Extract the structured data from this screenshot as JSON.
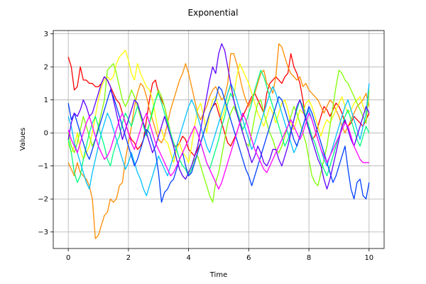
{
  "chart_data": {
    "type": "line",
    "title": "Exponential",
    "xlabel": "Time",
    "ylabel": "Values",
    "xlim": [
      -0.5,
      10.5
    ],
    "ylim": [
      -3.5,
      3.1
    ],
    "xticks": [
      0,
      2,
      4,
      6,
      8,
      10
    ],
    "yticks": [
      -3,
      -2,
      -1,
      0,
      1,
      2,
      3
    ],
    "xtick_labels": [
      "0",
      "2",
      "4",
      "6",
      "8",
      "10"
    ],
    "ytick_labels": [
      "−3",
      "−2",
      "−1",
      "0",
      "1",
      "2",
      "3"
    ],
    "grid": true,
    "x_step": 0.1,
    "series": [
      {
        "color": "#ff0000",
        "values": [
          2.3,
          2.0,
          1.3,
          1.4,
          2.0,
          1.6,
          1.6,
          1.5,
          1.5,
          1.4,
          1.4,
          1.5,
          1.7,
          1.6,
          1.4,
          1.2,
          1.0,
          0.9,
          0.6,
          0.3,
          0.0,
          -0.2,
          -0.3,
          -0.5,
          -0.4,
          -0.2,
          0.4,
          1.0,
          1.5,
          1.6,
          1.2,
          1.0,
          0.8,
          0.4,
          0.0,
          -0.4,
          -0.4,
          -0.3,
          -0.1,
          -0.2,
          -0.5,
          -0.6,
          -0.7,
          -0.5,
          -0.3,
          0.0,
          0.3,
          0.6,
          0.8,
          0.9,
          0.6,
          0.3,
          0.0,
          -0.3,
          -0.4,
          -0.2,
          0.0,
          0.3,
          0.5,
          0.7,
          0.9,
          1.1,
          1.2,
          1.0,
          0.8,
          0.6,
          1.2,
          1.5,
          1.6,
          1.7,
          1.6,
          1.5,
          1.7,
          1.8,
          2.4,
          2.0,
          1.8,
          1.5,
          1.0,
          0.4,
          0.1,
          -0.2,
          -0.1,
          0.2,
          0.5,
          0.8,
          0.7,
          0.5,
          0.7,
          0.9,
          0.8,
          0.6,
          0.3,
          0.2,
          0.3,
          0.5,
          0.4,
          0.3,
          0.2,
          0.4,
          0.6
        ]
      },
      {
        "color": "#ff8c00",
        "values": [
          -0.9,
          -1.1,
          -1.3,
          -0.9,
          -1.2,
          -1.3,
          -1.4,
          -1.6,
          -2.0,
          -3.2,
          -3.1,
          -2.8,
          -2.5,
          -2.4,
          -2.0,
          -2.1,
          -2.0,
          -1.6,
          -1.5,
          -0.8,
          -0.3,
          0.2,
          0.8,
          1.2,
          1.5,
          1.4,
          1.1,
          0.7,
          0.4,
          0.1,
          -0.2,
          -0.3,
          -0.1,
          0.3,
          0.7,
          1.0,
          1.3,
          1.6,
          1.8,
          2.1,
          1.8,
          1.4,
          1.0,
          0.6,
          0.4,
          0.6,
          0.8,
          1.1,
          1.3,
          1.4,
          1.2,
          1.0,
          1.1,
          1.5,
          2.4,
          2.4,
          2.1,
          1.7,
          1.3,
          1.0,
          0.8,
          1.0,
          1.2,
          1.5,
          1.8,
          1.9,
          1.5,
          1.4,
          1.2,
          1.7,
          2.7,
          2.6,
          2.3,
          2.0,
          1.8,
          1.7,
          1.6,
          1.7,
          1.4,
          1.5,
          1.3,
          1.2,
          1.1,
          1.0,
          0.8,
          0.6,
          0.8,
          1.0,
          0.9,
          0.7,
          0.5,
          0.2,
          0.0,
          0.2,
          0.4,
          0.6,
          0.8,
          0.9,
          1.0,
          1.2,
          0.8
        ]
      },
      {
        "color": "#ffff00",
        "values": [
          -0.3,
          -0.6,
          -0.4,
          0.0,
          -0.5,
          -0.8,
          -0.6,
          -0.4,
          0.0,
          0.5,
          1.0,
          1.4,
          1.6,
          1.7,
          1.6,
          1.7,
          2.1,
          2.3,
          2.4,
          2.5,
          2.2,
          1.8,
          1.6,
          2.1,
          1.8,
          1.6,
          1.4,
          1.3,
          1.0,
          0.5,
          0.0,
          0.1,
          -0.2,
          -0.3,
          -0.6,
          -0.9,
          -0.5,
          -0.3,
          -0.6,
          -0.7,
          -0.9,
          -0.4,
          0.2,
          0.7,
          0.9,
          0.5,
          0.0,
          0.6,
          1.0,
          1.1,
          0.8,
          0.4,
          0.7,
          1.2,
          1.4,
          1.1,
          1.7,
          2.1,
          1.9,
          1.7,
          1.5,
          1.2,
          0.9,
          0.6,
          0.4,
          0.2,
          0.5,
          0.8,
          0.6,
          0.3,
          0.6,
          0.9,
          1.0,
          0.7,
          0.3,
          0.1,
          0.4,
          0.7,
          0.6,
          0.9,
          1.0,
          0.8,
          0.5,
          0.2,
          -0.1,
          0.2,
          0.4,
          0.3,
          0.5,
          0.7,
          0.9,
          1.1,
          0.8,
          0.6,
          0.7,
          0.9,
          1.0,
          1.1,
          0.8,
          0.6,
          1.3
        ]
      },
      {
        "color": "#80ff00",
        "values": [
          0.0,
          -0.4,
          -0.6,
          -0.3,
          0.1,
          0.5,
          0.2,
          -0.1,
          -0.4,
          -0.2,
          0.2,
          0.6,
          1.0,
          1.9,
          2.0,
          2.1,
          1.8,
          1.4,
          1.0,
          0.8,
          1.0,
          1.3,
          1.1,
          0.8,
          0.5,
          0.2,
          0.0,
          0.3,
          0.6,
          1.0,
          1.3,
          1.1,
          0.8,
          0.4,
          0.0,
          -0.4,
          -0.8,
          -1.1,
          -1.3,
          -1.4,
          -1.2,
          -1.0,
          -0.8,
          -0.7,
          -1.0,
          -1.3,
          -1.6,
          -1.9,
          -2.1,
          -1.5,
          -1.2,
          -0.7,
          -0.2,
          0.3,
          0.6,
          0.8,
          0.6,
          0.4,
          0.0,
          -0.3,
          -0.4,
          0.0,
          0.5,
          0.9,
          1.0,
          0.6,
          0.3,
          0.0,
          -0.2,
          -0.5,
          -0.6,
          -0.4,
          -0.1,
          0.2,
          0.5,
          0.8,
          0.6,
          0.3,
          0.0,
          -0.3,
          -0.8,
          -1.3,
          -1.5,
          -1.6,
          -1.2,
          -0.8,
          -0.4,
          0.2,
          0.8,
          1.4,
          1.9,
          1.8,
          1.6,
          1.5,
          1.3,
          1.1,
          0.9,
          0.7,
          0.5,
          0.3,
          1.3
        ]
      },
      {
        "color": "#00ff80",
        "values": [
          -0.2,
          -0.6,
          -1.2,
          -1.5,
          -1.3,
          -0.8,
          -0.4,
          0.0,
          0.3,
          0.5,
          0.2,
          -0.1,
          -0.4,
          -0.8,
          -1.0,
          -0.6,
          -0.3,
          -0.1,
          0.3,
          0.6,
          0.4,
          0.2,
          0.5,
          0.8,
          0.6,
          0.2,
          -0.1,
          0.3,
          0.7,
          1.0,
          1.2,
          0.9,
          0.6,
          0.3,
          0.0,
          -0.3,
          -0.5,
          -0.8,
          -1.0,
          -1.1,
          -1.3,
          -1.1,
          -0.9,
          -0.6,
          -0.3,
          -0.6,
          -0.9,
          -1.1,
          -0.8,
          -0.5,
          -0.2,
          0.2,
          0.5,
          0.9,
          1.2,
          1.0,
          0.7,
          0.4,
          0.1,
          0.3,
          0.6,
          0.9,
          1.3,
          1.6,
          1.9,
          1.7,
          1.4,
          1.1,
          0.8,
          0.5,
          0.2,
          -0.1,
          -0.4,
          -0.2,
          0.1,
          0.4,
          0.7,
          1.0,
          0.8,
          0.5,
          0.2,
          -0.1,
          -0.3,
          -0.6,
          -0.9,
          -1.1,
          -1.3,
          -1.0,
          -0.7,
          -0.4,
          -0.1,
          0.2,
          0.5,
          0.7,
          0.4,
          0.1,
          -0.2,
          -0.4,
          -0.1,
          0.2,
          0.0
        ]
      },
      {
        "color": "#00c0ff",
        "values": [
          0.5,
          0.2,
          -0.3,
          -0.6,
          -0.9,
          -1.2,
          -1.5,
          -1.7,
          -1.2,
          -0.8,
          -0.4,
          0.0,
          0.3,
          0.6,
          0.4,
          0.1,
          -0.2,
          -0.5,
          -0.8,
          -1.1,
          -0.9,
          -0.6,
          -0.9,
          -1.2,
          -1.4,
          -1.7,
          -1.9,
          -1.6,
          -1.3,
          -1.0,
          -0.7,
          -0.9,
          -1.1,
          -1.3,
          -1.0,
          -0.7,
          -0.4,
          -0.1,
          0.2,
          0.5,
          0.8,
          1.0,
          0.8,
          0.5,
          0.2,
          -0.1,
          -0.4,
          -0.6,
          -0.3,
          0.0,
          0.3,
          0.6,
          0.9,
          1.2,
          1.5,
          1.3,
          1.0,
          0.7,
          0.4,
          0.1,
          -0.2,
          -0.5,
          -0.3,
          0.0,
          0.3,
          0.6,
          0.9,
          1.2,
          1.4,
          1.2,
          0.9,
          0.6,
          0.3,
          0.0,
          -0.3,
          -0.6,
          -0.4,
          -0.1,
          0.2,
          0.5,
          0.7,
          0.4,
          0.1,
          -0.2,
          -0.5,
          -0.8,
          -1.0,
          -0.7,
          -0.4,
          -0.1,
          0.2,
          0.5,
          0.8,
          1.0,
          0.7,
          0.4,
          0.1,
          -0.2,
          0.2,
          0.6,
          1.5
        ]
      },
      {
        "color": "#0040ff",
        "values": [
          0.9,
          0.4,
          0.6,
          0.3,
          0.0,
          -0.3,
          -0.6,
          -0.8,
          -0.5,
          -0.2,
          0.1,
          0.4,
          0.7,
          1.0,
          1.3,
          1.1,
          0.8,
          0.5,
          0.2,
          -0.1,
          -0.4,
          -0.7,
          -1.0,
          -0.8,
          -0.5,
          -0.2,
          0.1,
          0.0,
          -0.3,
          -0.6,
          -1.2,
          -2.1,
          -1.8,
          -1.7,
          -1.5,
          -1.4,
          -1.1,
          -0.8,
          -0.6,
          -1.0,
          -1.3,
          -1.2,
          -0.9,
          -0.6,
          -0.3,
          0.0,
          0.3,
          0.6,
          0.8,
          1.0,
          1.4,
          1.3,
          1.0,
          0.7,
          0.4,
          0.1,
          -0.2,
          -0.5,
          -0.8,
          -1.1,
          -1.3,
          -1.6,
          -1.3,
          -1.0,
          -0.7,
          -0.4,
          -0.1,
          0.2,
          0.5,
          0.8,
          1.1,
          1.0,
          0.7,
          0.4,
          0.1,
          -0.2,
          -0.4,
          -0.1,
          0.2,
          0.5,
          0.8,
          0.6,
          0.3,
          0.0,
          -0.3,
          -0.6,
          -0.9,
          -1.2,
          -1.5,
          -1.3,
          -1.0,
          -0.7,
          -0.4,
          -1.1,
          -1.7,
          -2.0,
          -1.5,
          -1.4,
          -1.9,
          -2.0,
          -1.5
        ]
      },
      {
        "color": "#6000ff",
        "values": [
          -0.2,
          0.3,
          0.6,
          0.5,
          0.7,
          1.0,
          0.8,
          0.5,
          0.6,
          0.9,
          1.2,
          1.5,
          1.7,
          1.6,
          1.4,
          1.0,
          0.6,
          0.2,
          -0.2,
          0.1,
          0.4,
          0.7,
          1.0,
          0.9,
          0.6,
          0.3,
          0.0,
          -0.3,
          -0.6,
          -0.4,
          -0.1,
          0.2,
          0.5,
          0.2,
          -0.1,
          -0.4,
          -0.8,
          -1.1,
          -1.3,
          -1.4,
          -1.2,
          -1.0,
          -0.7,
          -0.4,
          0.1,
          0.6,
          1.1,
          1.6,
          2.0,
          1.8,
          2.4,
          2.7,
          2.5,
          2.0,
          1.5,
          1.0,
          0.6,
          0.3,
          0.0,
          -0.3,
          -0.6,
          -0.9,
          -0.7,
          -0.4,
          -0.6,
          -0.9,
          -1.0,
          -0.8,
          -0.5,
          -0.5,
          -0.8,
          -1.0,
          -0.7,
          -0.4,
          0.0,
          0.4,
          0.8,
          1.0,
          0.7,
          0.4,
          0.1,
          -0.2,
          -0.5,
          -0.8,
          -1.0,
          -1.4,
          -1.7,
          -1.4,
          -1.0,
          -0.6,
          -0.2,
          0.2,
          0.4,
          0.1,
          -0.2,
          -0.4,
          -0.1,
          0.2,
          0.5,
          0.8,
          0.6
        ]
      },
      {
        "color": "#ff00ff",
        "values": [
          0.1,
          -0.2,
          -0.4,
          -0.6,
          -0.3,
          0.0,
          0.3,
          0.5,
          0.2,
          -0.1,
          -0.4,
          -0.6,
          -0.8,
          -0.7,
          -0.5,
          -0.2,
          0.1,
          0.4,
          0.6,
          0.3,
          0.0,
          -0.3,
          -0.5,
          -0.2,
          0.1,
          0.4,
          0.6,
          0.3,
          0.0,
          -0.3,
          -0.5,
          -0.7,
          -0.9,
          -1.1,
          -1.3,
          -1.2,
          -1.0,
          -0.8,
          -0.6,
          -0.4,
          -0.2,
          0.0,
          0.2,
          0.0,
          -0.3,
          -0.6,
          -0.9,
          -1.1,
          -1.3,
          -1.5,
          -1.7,
          -1.5,
          -1.2,
          -0.9,
          -0.6,
          -0.3,
          0.0,
          0.3,
          0.6,
          0.4,
          0.1,
          -0.2,
          -0.5,
          -0.7,
          -0.9,
          -1.1,
          -1.2,
          -1.0,
          -0.8,
          -0.6,
          -0.4,
          -0.2,
          0.0,
          0.2,
          0.4,
          0.2,
          0.0,
          -0.2,
          0.0,
          0.3,
          0.6,
          0.4,
          0.1,
          -0.2,
          -0.5,
          -0.7,
          -0.9,
          -0.7,
          -0.5,
          -0.3,
          -0.1,
          0.1,
          0.3,
          0.2,
          -0.1,
          -0.4,
          -0.6,
          -0.8,
          -0.9,
          -0.9,
          -0.9
        ]
      }
    ]
  }
}
